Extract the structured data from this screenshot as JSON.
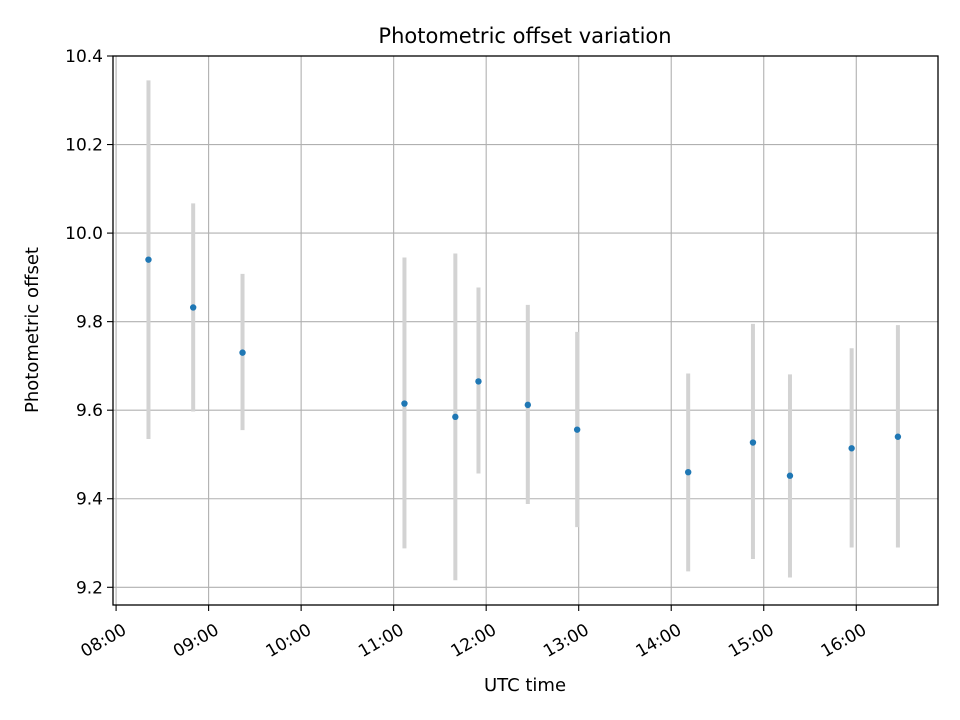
{
  "chart_data": {
    "type": "scatter",
    "title": "Photometric offset variation",
    "xlabel": "UTC time",
    "ylabel": "Photometric offset",
    "x_ticks": [
      "08:00",
      "09:00",
      "10:00",
      "11:00",
      "12:00",
      "13:00",
      "14:00",
      "15:00",
      "16:00"
    ],
    "y_ticks": [
      9.2,
      9.4,
      9.6,
      9.8,
      10.0,
      10.2,
      10.4
    ],
    "y_tick_labels": [
      "9.2",
      "9.4",
      "9.6",
      "9.8",
      "10.0",
      "10.2",
      "10.4"
    ],
    "xlim": [
      "07:58",
      "16:53"
    ],
    "ylim": [
      9.16,
      10.4
    ],
    "grid": true,
    "marker_color": "#1f77b4",
    "errorbar_color": "#d3d3d3",
    "points": [
      {
        "x": "08:21",
        "y": 9.94,
        "ylow": 9.535,
        "yhigh": 10.345
      },
      {
        "x": "08:50",
        "y": 9.832,
        "ylow": 9.597,
        "yhigh": 10.067
      },
      {
        "x": "09:22",
        "y": 9.73,
        "ylow": 9.555,
        "yhigh": 9.908
      },
      {
        "x": "11:07",
        "y": 9.615,
        "ylow": 9.288,
        "yhigh": 9.945
      },
      {
        "x": "11:40",
        "y": 9.585,
        "ylow": 9.216,
        "yhigh": 9.954
      },
      {
        "x": "11:55",
        "y": 9.665,
        "ylow": 9.457,
        "yhigh": 9.877
      },
      {
        "x": "12:27",
        "y": 9.612,
        "ylow": 9.388,
        "yhigh": 9.838
      },
      {
        "x": "12:59",
        "y": 9.556,
        "ylow": 9.336,
        "yhigh": 9.777
      },
      {
        "x": "14:11",
        "y": 9.46,
        "ylow": 9.236,
        "yhigh": 9.683
      },
      {
        "x": "14:53",
        "y": 9.527,
        "ylow": 9.264,
        "yhigh": 9.795
      },
      {
        "x": "15:17",
        "y": 9.452,
        "ylow": 9.222,
        "yhigh": 9.681
      },
      {
        "x": "15:57",
        "y": 9.514,
        "ylow": 9.29,
        "yhigh": 9.74
      },
      {
        "x": "16:27",
        "y": 9.54,
        "ylow": 9.29,
        "yhigh": 9.792
      }
    ]
  }
}
